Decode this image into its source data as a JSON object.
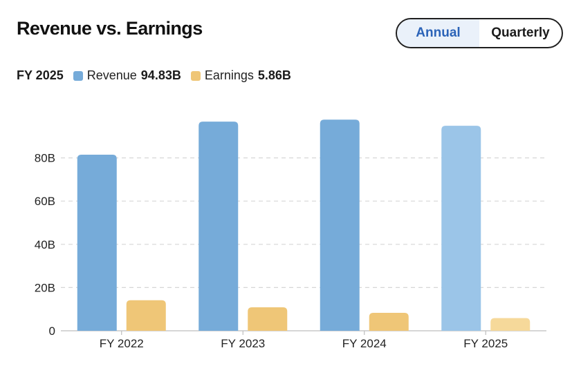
{
  "header": {
    "title": "Revenue vs. Earnings",
    "toggle": {
      "annual": "Annual",
      "quarterly": "Quarterly",
      "selected": "Annual"
    }
  },
  "legend": {
    "period": "FY 2025",
    "revenue": {
      "label": "Revenue",
      "value": "94.83B",
      "color": "#76abd9"
    },
    "earnings": {
      "label": "Earnings",
      "value": "5.86B",
      "color": "#efc677"
    }
  },
  "chart_data": {
    "type": "bar",
    "categories": [
      "FY 2022",
      "FY 2023",
      "FY 2024",
      "FY 2025"
    ],
    "series": [
      {
        "name": "Revenue",
        "values": [
          81.46,
          96.77,
          97.69,
          94.83
        ],
        "color": "#76abd9",
        "highlight_color": "#9bc5e8"
      },
      {
        "name": "Earnings",
        "values": [
          14.12,
          10.86,
          8.32,
          5.86
        ],
        "color": "#efc677",
        "highlight_color": "#f6d99a"
      }
    ],
    "highlighted_category": "FY 2025",
    "y_ticks": [
      0,
      20,
      40,
      60,
      80
    ],
    "y_tick_labels": [
      "0",
      "20B",
      "40B",
      "60B",
      "80B"
    ],
    "ylim": [
      0,
      100
    ],
    "grid": true,
    "grid_style": "dashed",
    "legend_position": "top-left"
  }
}
